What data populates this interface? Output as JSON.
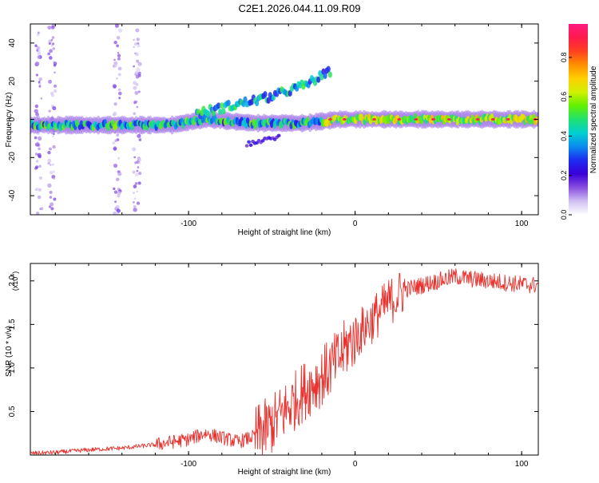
{
  "title": "C2E1.2026.044.11.09.R09",
  "colors": {
    "snr_line": "#e8322e",
    "axis": "#000000",
    "background": "#ffffff",
    "colormap": [
      "#ffffff",
      "#cfbff2",
      "#8a4fe0",
      "#3a00d8",
      "#1d2cf0",
      "#0a8cf0",
      "#00d0d0",
      "#20e070",
      "#60f000",
      "#d0f000",
      "#ffd000",
      "#ff9000",
      "#ff4020",
      "#ff1a4c",
      "#ff1a80"
    ]
  },
  "chart_data": [
    {
      "type": "heatmap",
      "title": "C2E1.2026.044.11.09.R09",
      "xlabel": "Height of straight line (km)",
      "ylabel": "Frequency (Hz)",
      "xlim": [
        -195,
        110
      ],
      "ylim": [
        -50,
        50
      ],
      "xticks": [
        -100,
        0,
        100
      ],
      "xtick_labels": [
        "-100",
        "0",
        "100"
      ],
      "yticks": [
        -40,
        -20,
        0,
        20,
        40
      ],
      "ytick_labels": [
        "-40",
        "-20",
        "0",
        "20",
        "40"
      ],
      "colorbar": {
        "label": "Normalized spectral amplitude",
        "range": [
          0,
          0.97
        ],
        "ticks": [
          0,
          0.2,
          0.4,
          0.6,
          0.8
        ],
        "tick_labels": [
          "0.0",
          "0.2",
          "0.4",
          "0.6",
          "0.8"
        ]
      },
      "features": [
        {
          "name": "main-frequency-track",
          "x": [
            -195,
            -150,
            -110,
            -90,
            -60,
            -30,
            -10,
            0,
            40,
            80,
            110
          ],
          "y": [
            -3,
            -3,
            -3,
            0,
            -2,
            -2,
            0,
            0,
            0,
            0,
            0
          ]
        },
        {
          "name": "upper-branch",
          "x": [
            -95,
            -70,
            -50,
            -30,
            -15
          ],
          "y": [
            3,
            8,
            12,
            18,
            25
          ]
        },
        {
          "name": "lower-branch",
          "x": [
            -65,
            -55,
            -45
          ],
          "y": [
            -13,
            -11,
            -9
          ]
        }
      ]
    },
    {
      "type": "line",
      "xlabel": "Height of straight line (km)",
      "ylabel": "SNR (10 * v/v)",
      "y_multiplier_label": "(x10",
      "y_multiplier_exponent": "4",
      "y_multiplier_close": ")",
      "xlim": [
        -195,
        110
      ],
      "ylim": [
        0,
        2.2
      ],
      "xticks": [
        -100,
        0,
        100
      ],
      "xtick_labels": [
        "-100",
        "0",
        "100"
      ],
      "yticks": [
        0.5,
        1.0,
        1.5,
        2.0
      ],
      "ytick_labels": [
        "0.5",
        "1.0",
        "1.5",
        "2.0"
      ],
      "series": [
        {
          "name": "SNR",
          "x": [
            -195,
            -180,
            -160,
            -140,
            -120,
            -100,
            -90,
            -80,
            -70,
            -60,
            -50,
            -40,
            -30,
            -20,
            -15,
            -10,
            -5,
            0,
            5,
            10,
            15,
            20,
            30,
            40,
            50,
            60,
            70,
            80,
            90,
            100,
            110
          ],
          "y": [
            0.02,
            0.03,
            0.06,
            0.08,
            0.12,
            0.18,
            0.25,
            0.2,
            0.15,
            0.22,
            0.35,
            0.55,
            0.75,
            0.9,
            1.0,
            1.1,
            1.25,
            1.35,
            1.45,
            1.55,
            1.65,
            1.75,
            1.9,
            1.95,
            2.0,
            2.05,
            2.02,
            2.0,
            1.98,
            1.96,
            1.95
          ]
        }
      ]
    }
  ]
}
